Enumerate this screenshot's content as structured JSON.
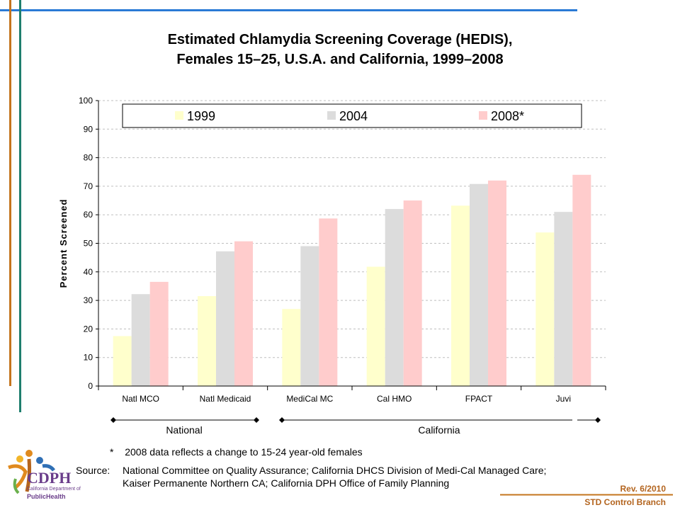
{
  "title_lines": [
    "Estimated Chlamydia Screening Coverage (HEDIS),",
    "Females 15–25, U.S.A. and California, 1999–2008"
  ],
  "chart_data": {
    "type": "bar",
    "title": "Estimated Chlamydia Screening Coverage (HEDIS), Females 15–25, U.S.A. and California, 1999–2008",
    "xlabel": "",
    "ylabel": "Percent Screened",
    "ylim": [
      0,
      100
    ],
    "yticks": [
      0,
      10,
      20,
      30,
      40,
      50,
      60,
      70,
      80,
      90,
      100
    ],
    "grid": true,
    "legend_position": "top",
    "categories": [
      "Natl MCO",
      "Natl Medicaid",
      "MediCal MC",
      "Cal HMO",
      "FPACT",
      "Juvi"
    ],
    "series": [
      {
        "name": "1999",
        "color": "#ffffcc",
        "values": [
          17.5,
          31.5,
          27,
          41.8,
          63.2,
          53.8
        ]
      },
      {
        "name": "2004",
        "color": "#dcdcdc",
        "values": [
          32.2,
          47.2,
          49,
          62,
          70.8,
          61
        ]
      },
      {
        "name": "2008*",
        "color": "#ffcccc",
        "values": [
          36.5,
          50.7,
          58.7,
          65,
          72,
          74
        ]
      }
    ],
    "groups": [
      {
        "label": "National",
        "from": 0,
        "to": 1
      },
      {
        "label": "California",
        "from": 2,
        "to": 5
      }
    ]
  },
  "footnote_marker": "*",
  "footnote": "2008 data reflects a change to 15-24 year-old females",
  "source_label": "Source:",
  "source_lines": [
    "National Committee on Quality Assurance; California DHCS Division of Medi-Cal Managed Care;",
    "Kaiser Permanente Northern CA; California DPH Office of Family Planning"
  ],
  "revision": "Rev. 6/2010",
  "branch": "STD Control Branch",
  "logo": {
    "main": "CDPH",
    "sub": "California Department of",
    "bottom": "PublicHealth"
  },
  "colors": {
    "accent_blue": "#2a7ad5",
    "accent_orange": "#c4751e",
    "accent_teal": "#1f7f6e",
    "axis": "#000000",
    "grid": "#bfbfbf"
  }
}
